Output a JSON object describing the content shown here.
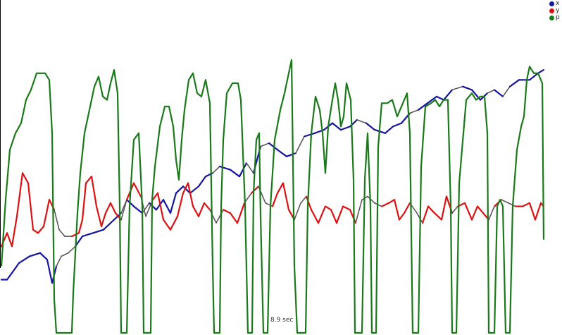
{
  "chart_data": {
    "type": "line",
    "legend_position": "top-right",
    "grid": false,
    "time_label": "8.9 sec",
    "series": [
      {
        "name": "x",
        "color": "#1515a0",
        "segment_color_alt": "#555555",
        "values": [
          [
            0,
            0.84
          ],
          [
            8,
            0.84
          ],
          [
            15,
            0.82
          ],
          [
            25,
            0.79
          ],
          [
            40,
            0.77
          ],
          [
            55,
            0.76
          ],
          [
            65,
            0.78
          ],
          [
            72,
            0.85
          ],
          [
            78,
            0.8
          ],
          [
            85,
            0.77
          ],
          [
            95,
            0.76
          ],
          [
            105,
            0.74
          ],
          [
            115,
            0.71
          ],
          [
            130,
            0.7
          ],
          [
            145,
            0.69
          ],
          [
            160,
            0.66
          ],
          [
            170,
            0.64
          ],
          [
            178,
            0.6
          ],
          [
            188,
            0.62
          ],
          [
            200,
            0.64
          ],
          [
            210,
            0.61
          ],
          [
            220,
            0.63
          ],
          [
            230,
            0.6
          ],
          [
            240,
            0.64
          ],
          [
            248,
            0.58
          ],
          [
            258,
            0.56
          ],
          [
            268,
            0.58
          ],
          [
            280,
            0.56
          ],
          [
            290,
            0.53
          ],
          [
            300,
            0.52
          ],
          [
            310,
            0.5
          ],
          [
            325,
            0.51
          ],
          [
            338,
            0.53
          ],
          [
            348,
            0.49
          ],
          [
            358,
            0.52
          ],
          [
            368,
            0.44
          ],
          [
            380,
            0.43
          ],
          [
            392,
            0.45
          ],
          [
            405,
            0.47
          ],
          [
            418,
            0.46
          ],
          [
            430,
            0.41
          ],
          [
            445,
            0.4
          ],
          [
            458,
            0.39
          ],
          [
            470,
            0.37
          ],
          [
            482,
            0.39
          ],
          [
            495,
            0.38
          ],
          [
            505,
            0.36
          ],
          [
            518,
            0.37
          ],
          [
            530,
            0.39
          ],
          [
            545,
            0.4
          ],
          [
            556,
            0.38
          ],
          [
            568,
            0.37
          ],
          [
            580,
            0.34
          ],
          [
            592,
            0.33
          ],
          [
            605,
            0.31
          ],
          [
            618,
            0.29
          ],
          [
            628,
            0.3
          ],
          [
            640,
            0.27
          ],
          [
            655,
            0.26
          ],
          [
            668,
            0.27
          ],
          [
            680,
            0.3
          ],
          [
            690,
            0.28
          ],
          [
            700,
            0.27
          ],
          [
            712,
            0.29
          ],
          [
            722,
            0.26
          ],
          [
            735,
            0.24
          ],
          [
            750,
            0.24
          ],
          [
            762,
            0.22
          ],
          [
            770,
            0.21
          ]
        ]
      },
      {
        "name": "y",
        "color": "#dd1111",
        "segment_color_alt": "#555555",
        "values": [
          [
            0,
            0.74
          ],
          [
            8,
            0.7
          ],
          [
            15,
            0.74
          ],
          [
            22,
            0.65
          ],
          [
            30,
            0.52
          ],
          [
            38,
            0.55
          ],
          [
            45,
            0.69
          ],
          [
            52,
            0.7
          ],
          [
            60,
            0.68
          ],
          [
            68,
            0.6
          ],
          [
            75,
            0.63
          ],
          [
            82,
            0.69
          ],
          [
            90,
            0.71
          ],
          [
            100,
            0.71
          ],
          [
            110,
            0.7
          ],
          [
            115,
            0.66
          ],
          [
            120,
            0.55
          ],
          [
            128,
            0.53
          ],
          [
            135,
            0.62
          ],
          [
            142,
            0.68
          ],
          [
            148,
            0.64
          ],
          [
            155,
            0.61
          ],
          [
            162,
            0.64
          ],
          [
            170,
            0.66
          ],
          [
            178,
            0.6
          ],
          [
            188,
            0.55
          ],
          [
            198,
            0.59
          ],
          [
            205,
            0.65
          ],
          [
            215,
            0.6
          ],
          [
            222,
            0.58
          ],
          [
            230,
            0.66
          ],
          [
            240,
            0.69
          ],
          [
            250,
            0.65
          ],
          [
            258,
            0.58
          ],
          [
            265,
            0.55
          ],
          [
            272,
            0.62
          ],
          [
            280,
            0.65
          ],
          [
            288,
            0.61
          ],
          [
            296,
            0.63
          ],
          [
            305,
            0.67
          ],
          [
            315,
            0.63
          ],
          [
            325,
            0.64
          ],
          [
            335,
            0.67
          ],
          [
            345,
            0.61
          ],
          [
            355,
            0.58
          ],
          [
            365,
            0.56
          ],
          [
            375,
            0.61
          ],
          [
            385,
            0.62
          ],
          [
            392,
            0.58
          ],
          [
            400,
            0.55
          ],
          [
            408,
            0.63
          ],
          [
            416,
            0.66
          ],
          [
            425,
            0.61
          ],
          [
            433,
            0.59
          ],
          [
            440,
            0.63
          ],
          [
            450,
            0.67
          ],
          [
            460,
            0.62
          ],
          [
            468,
            0.63
          ],
          [
            476,
            0.67
          ],
          [
            485,
            0.62
          ],
          [
            495,
            0.63
          ],
          [
            503,
            0.67
          ],
          [
            512,
            0.6
          ],
          [
            520,
            0.59
          ],
          [
            530,
            0.61
          ],
          [
            540,
            0.62
          ],
          [
            550,
            0.61
          ],
          [
            558,
            0.6
          ],
          [
            565,
            0.66
          ],
          [
            572,
            0.64
          ],
          [
            580,
            0.61
          ],
          [
            590,
            0.64
          ],
          [
            598,
            0.67
          ],
          [
            606,
            0.62
          ],
          [
            615,
            0.64
          ],
          [
            625,
            0.66
          ],
          [
            632,
            0.59
          ],
          [
            640,
            0.64
          ],
          [
            648,
            0.62
          ],
          [
            658,
            0.61
          ],
          [
            668,
            0.66
          ],
          [
            676,
            0.62
          ],
          [
            684,
            0.64
          ],
          [
            692,
            0.66
          ],
          [
            700,
            0.62
          ],
          [
            710,
            0.6
          ],
          [
            720,
            0.61
          ],
          [
            730,
            0.62
          ],
          [
            740,
            0.62
          ],
          [
            750,
            0.61
          ],
          [
            758,
            0.66
          ],
          [
            766,
            0.61
          ],
          [
            770,
            0.62
          ]
        ]
      },
      {
        "name": "p",
        "color": "#1a7a1a",
        "values": [
          [
            0,
            0.8
          ],
          [
            6,
            0.6
          ],
          [
            12,
            0.45
          ],
          [
            20,
            0.4
          ],
          [
            28,
            0.37
          ],
          [
            35,
            0.3
          ],
          [
            42,
            0.27
          ],
          [
            50,
            0.22
          ],
          [
            55,
            0.22
          ],
          [
            62,
            0.22
          ],
          [
            68,
            0.24
          ],
          [
            72,
            0.4
          ],
          [
            75,
            0.9
          ],
          [
            78,
            1.0
          ],
          [
            100,
            1.0
          ],
          [
            102,
            0.88
          ],
          [
            108,
            0.64
          ],
          [
            112,
            0.52
          ],
          [
            118,
            0.4
          ],
          [
            125,
            0.33
          ],
          [
            132,
            0.26
          ],
          [
            138,
            0.23
          ],
          [
            144,
            0.29
          ],
          [
            150,
            0.3
          ],
          [
            155,
            0.25
          ],
          [
            160,
            0.21
          ],
          [
            165,
            0.28
          ],
          [
            168,
            0.62
          ],
          [
            170,
            1.0
          ],
          [
            178,
            1.0
          ],
          [
            182,
            0.62
          ],
          [
            188,
            0.42
          ],
          [
            195,
            0.4
          ],
          [
            200,
            0.62
          ],
          [
            202,
            1.0
          ],
          [
            212,
            1.0
          ],
          [
            214,
            0.6
          ],
          [
            218,
            0.5
          ],
          [
            225,
            0.38
          ],
          [
            232,
            0.32
          ],
          [
            238,
            0.32
          ],
          [
            244,
            0.38
          ],
          [
            248,
            0.48
          ],
          [
            252,
            0.54
          ],
          [
            256,
            0.42
          ],
          [
            260,
            0.33
          ],
          [
            266,
            0.24
          ],
          [
            272,
            0.22
          ],
          [
            278,
            0.28
          ],
          [
            284,
            0.29
          ],
          [
            290,
            0.24
          ],
          [
            296,
            0.31
          ],
          [
            300,
            0.8
          ],
          [
            302,
            1.0
          ],
          [
            310,
            1.0
          ],
          [
            312,
            0.62
          ],
          [
            315,
            0.42
          ],
          [
            320,
            0.28
          ],
          [
            328,
            0.25
          ],
          [
            336,
            0.25
          ],
          [
            340,
            0.3
          ],
          [
            346,
            0.62
          ],
          [
            350,
            1.0
          ],
          [
            356,
            1.0
          ],
          [
            358,
            0.58
          ],
          [
            362,
            0.42
          ],
          [
            366,
            0.4
          ],
          [
            368,
            0.65
          ],
          [
            372,
            1.0
          ],
          [
            378,
            1.0
          ],
          [
            382,
            0.62
          ],
          [
            388,
            0.42
          ],
          [
            396,
            0.33
          ],
          [
            402,
            0.28
          ],
          [
            408,
            0.22
          ],
          [
            412,
            0.18
          ],
          [
            416,
            0.8
          ],
          [
            420,
            1.0
          ],
          [
            432,
            1.0
          ],
          [
            435,
            0.62
          ],
          [
            440,
            0.4
          ],
          [
            446,
            0.29
          ],
          [
            452,
            0.33
          ],
          [
            456,
            0.4
          ],
          [
            460,
            0.52
          ],
          [
            464,
            0.38
          ],
          [
            470,
            0.3
          ],
          [
            474,
            0.25
          ],
          [
            478,
            0.3
          ],
          [
            482,
            0.38
          ],
          [
            486,
            0.35
          ],
          [
            490,
            0.25
          ],
          [
            496,
            0.3
          ],
          [
            500,
            0.54
          ],
          [
            502,
            1.0
          ],
          [
            512,
            1.0
          ],
          [
            516,
            0.54
          ],
          [
            520,
            0.4
          ],
          [
            524,
            0.62
          ],
          [
            526,
            1.0
          ],
          [
            532,
            1.0
          ],
          [
            535,
            0.44
          ],
          [
            540,
            0.31
          ],
          [
            548,
            0.31
          ],
          [
            555,
            0.3
          ],
          [
            562,
            0.35
          ],
          [
            570,
            0.31
          ],
          [
            576,
            0.28
          ],
          [
            580,
            0.4
          ],
          [
            584,
            1.0
          ],
          [
            592,
            1.0
          ],
          [
            596,
            0.5
          ],
          [
            602,
            0.32
          ],
          [
            610,
            0.31
          ],
          [
            616,
            0.3
          ],
          [
            622,
            0.32
          ],
          [
            628,
            0.3
          ],
          [
            634,
            0.3
          ],
          [
            638,
            0.62
          ],
          [
            640,
            1.0
          ],
          [
            646,
            1.0
          ],
          [
            650,
            0.55
          ],
          [
            656,
            0.4
          ],
          [
            660,
            0.3
          ],
          [
            668,
            0.28
          ],
          [
            674,
            0.3
          ],
          [
            680,
            0.29
          ],
          [
            686,
            0.29
          ],
          [
            690,
            0.4
          ],
          [
            692,
            1.0
          ],
          [
            700,
            1.0
          ],
          [
            704,
            0.62
          ],
          [
            708,
            0.6
          ],
          [
            712,
            0.62
          ],
          [
            716,
            1.0
          ],
          [
            722,
            1.0
          ],
          [
            726,
            0.62
          ],
          [
            732,
            0.45
          ],
          [
            738,
            0.38
          ],
          [
            742,
            0.35
          ],
          [
            746,
            0.24
          ],
          [
            750,
            0.2
          ],
          [
            756,
            0.22
          ],
          [
            762,
            0.22
          ],
          [
            768,
            0.25
          ],
          [
            770,
            0.72
          ]
        ]
      }
    ]
  }
}
